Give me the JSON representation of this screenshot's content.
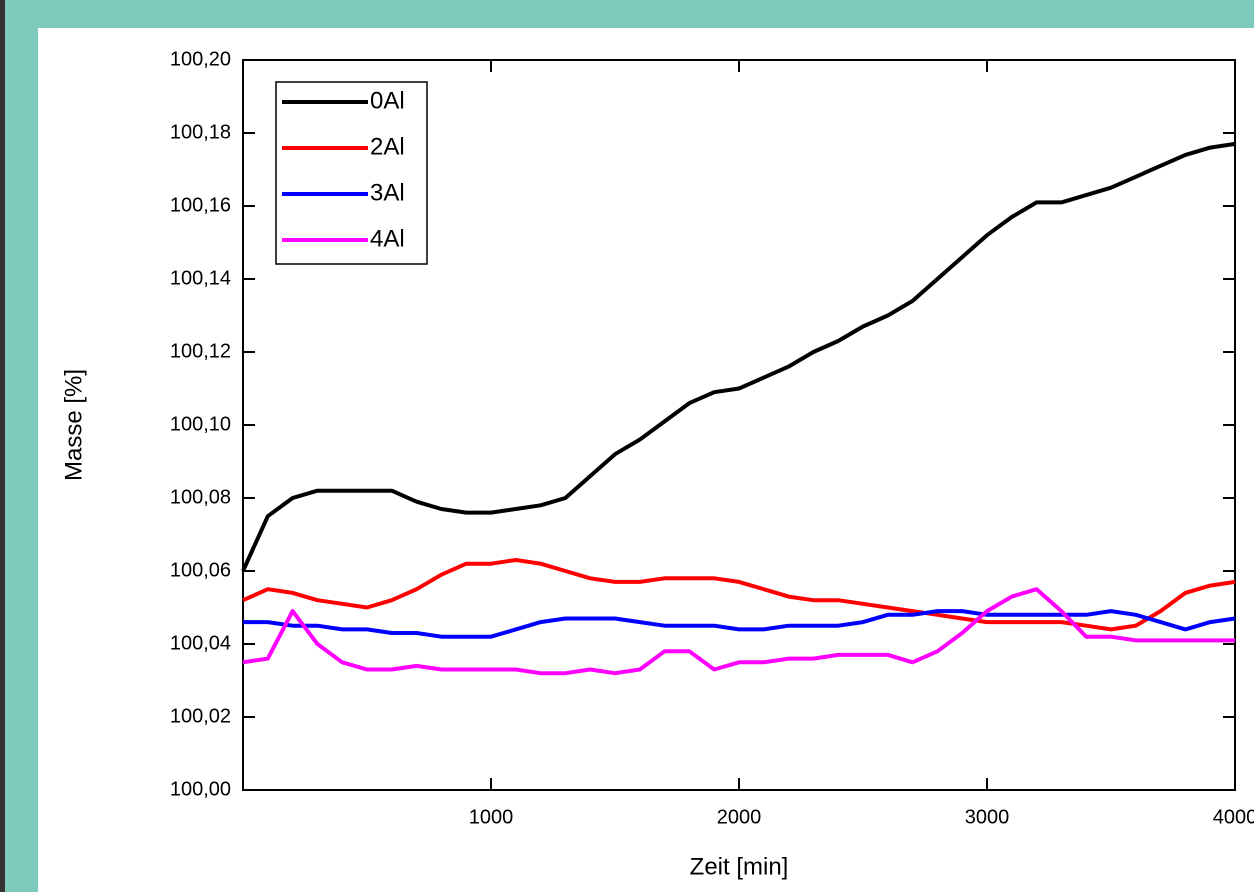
{
  "chart_data": {
    "type": "line",
    "x_label": "Zeit [min]",
    "y_label": "Masse [%]",
    "x": [
      0,
      100,
      200,
      300,
      400,
      500,
      600,
      700,
      800,
      900,
      1000,
      1100,
      1200,
      1300,
      1400,
      1500,
      1600,
      1700,
      1800,
      1900,
      2000,
      2100,
      2200,
      2300,
      2400,
      2500,
      2600,
      2700,
      2800,
      2900,
      3000,
      3100,
      3200,
      3300,
      3400,
      3500,
      3600,
      3700,
      3800,
      3900,
      4000
    ],
    "series": [
      {
        "name": "0Al",
        "color": "#000000",
        "values": [
          100.06,
          100.075,
          100.08,
          100.082,
          100.082,
          100.082,
          100.082,
          100.079,
          100.077,
          100.076,
          100.076,
          100.077,
          100.078,
          100.08,
          100.086,
          100.092,
          100.096,
          100.101,
          100.106,
          100.109,
          100.11,
          100.113,
          100.116,
          100.12,
          100.123,
          100.127,
          100.13,
          100.134,
          100.14,
          100.146,
          100.152,
          100.157,
          100.161,
          100.161,
          100.163,
          100.165,
          100.168,
          100.171,
          100.174,
          100.176,
          100.177
        ]
      },
      {
        "name": "2Al",
        "color": "#ff0000",
        "values": [
          100.052,
          100.055,
          100.054,
          100.052,
          100.051,
          100.05,
          100.052,
          100.055,
          100.059,
          100.062,
          100.062,
          100.063,
          100.062,
          100.06,
          100.058,
          100.057,
          100.057,
          100.058,
          100.058,
          100.058,
          100.057,
          100.055,
          100.053,
          100.052,
          100.052,
          100.051,
          100.05,
          100.049,
          100.048,
          100.047,
          100.046,
          100.046,
          100.046,
          100.046,
          100.045,
          100.044,
          100.045,
          100.049,
          100.054,
          100.056,
          100.057
        ]
      },
      {
        "name": "3Al",
        "color": "#0000ff",
        "values": [
          100.046,
          100.046,
          100.045,
          100.045,
          100.044,
          100.044,
          100.043,
          100.043,
          100.042,
          100.042,
          100.042,
          100.044,
          100.046,
          100.047,
          100.047,
          100.047,
          100.046,
          100.045,
          100.045,
          100.045,
          100.044,
          100.044,
          100.045,
          100.045,
          100.045,
          100.046,
          100.048,
          100.048,
          100.049,
          100.049,
          100.048,
          100.048,
          100.048,
          100.048,
          100.048,
          100.049,
          100.048,
          100.046,
          100.044,
          100.046,
          100.047
        ]
      },
      {
        "name": "4Al",
        "color": "#ff00ff",
        "values": [
          100.035,
          100.036,
          100.049,
          100.04,
          100.035,
          100.033,
          100.033,
          100.034,
          100.033,
          100.033,
          100.033,
          100.033,
          100.032,
          100.032,
          100.033,
          100.032,
          100.033,
          100.038,
          100.038,
          100.033,
          100.035,
          100.035,
          100.036,
          100.036,
          100.037,
          100.037,
          100.037,
          100.035,
          100.038,
          100.043,
          100.049,
          100.053,
          100.055,
          100.049,
          100.042,
          100.042,
          100.041,
          100.041,
          100.041,
          100.041,
          100.041
        ]
      }
    ],
    "xlim": [
      0,
      4000
    ],
    "xticks": [
      1000,
      2000,
      3000,
      4000
    ],
    "ylim": [
      100.0,
      100.2
    ],
    "yticks": [
      {
        "value": 100.0,
        "label": "100,00"
      },
      {
        "value": 100.02,
        "label": "100,02"
      },
      {
        "value": 100.04,
        "label": "100,04"
      },
      {
        "value": 100.06,
        "label": "100,06"
      },
      {
        "value": 100.08,
        "label": "100,08"
      },
      {
        "value": 100.1,
        "label": "100,10"
      },
      {
        "value": 100.12,
        "label": "100,12"
      },
      {
        "value": 100.14,
        "label": "100,14"
      },
      {
        "value": 100.16,
        "label": "100,16"
      },
      {
        "value": 100.18,
        "label": "100,18"
      },
      {
        "value": 100.2,
        "label": "100,20"
      }
    ],
    "grid": false,
    "legend": "upper-left"
  }
}
